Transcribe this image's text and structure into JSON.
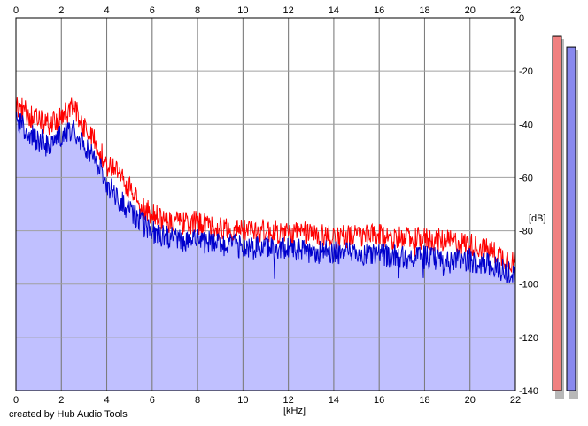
{
  "chart_data": {
    "type": "area",
    "title": "",
    "xlabel": "[kHz]",
    "ylabel": "[dB]",
    "xlim": [
      0,
      22
    ],
    "ylim": [
      -140,
      0
    ],
    "x_ticks": [
      0,
      2,
      4,
      6,
      8,
      10,
      12,
      14,
      16,
      18,
      20,
      22
    ],
    "x_tick_labels": [
      "0",
      "2",
      "4",
      "6",
      "8",
      "10",
      "12",
      "14",
      "16",
      "18",
      "20",
      "22"
    ],
    "y_ticks": [
      0,
      -20,
      -40,
      -60,
      -80,
      -100,
      -120,
      -140
    ],
    "y_tick_labels": [
      "0",
      "-20",
      "-40",
      "-60",
      "-80",
      "-100",
      "-120",
      "-140"
    ],
    "grid": true,
    "legend": "none",
    "x_khz": [
      0,
      0.5,
      1,
      1.5,
      2,
      2.5,
      3,
      3.5,
      4,
      4.5,
      5,
      5.5,
      6,
      6.5,
      7,
      8,
      9,
      10,
      11,
      12,
      13,
      14,
      15,
      16,
      17,
      18,
      19,
      20,
      21,
      22
    ],
    "series": [
      {
        "color": "#ff0000",
        "values": [
          -33,
          -36,
          -39,
          -40,
          -38,
          -33,
          -41,
          -47,
          -55,
          -58,
          -64,
          -70,
          -74,
          -76,
          -77,
          -77,
          -79,
          -80,
          -80,
          -81,
          -81,
          -82,
          -82,
          -82,
          -83,
          -83,
          -84,
          -85,
          -88,
          -92
        ]
      },
      {
        "color": "#0000cc",
        "values": [
          -38,
          -43,
          -46,
          -47,
          -44,
          -42,
          -47,
          -53,
          -62,
          -68,
          -72,
          -76,
          -80,
          -82,
          -83,
          -84,
          -85,
          -86,
          -86,
          -87,
          -88,
          -88,
          -89,
          -89,
          -90,
          -90,
          -91,
          -91,
          -93,
          -97
        ]
      }
    ],
    "level_meters": [
      {
        "color": "#f08080",
        "top_db": -7,
        "bottom_db": -140
      },
      {
        "color": "#8888ee",
        "top_db": -11,
        "bottom_db": -140
      }
    ],
    "fill_color": "#c0c0ff"
  },
  "footer": {
    "credit": "created by Hub Audio Tools"
  }
}
